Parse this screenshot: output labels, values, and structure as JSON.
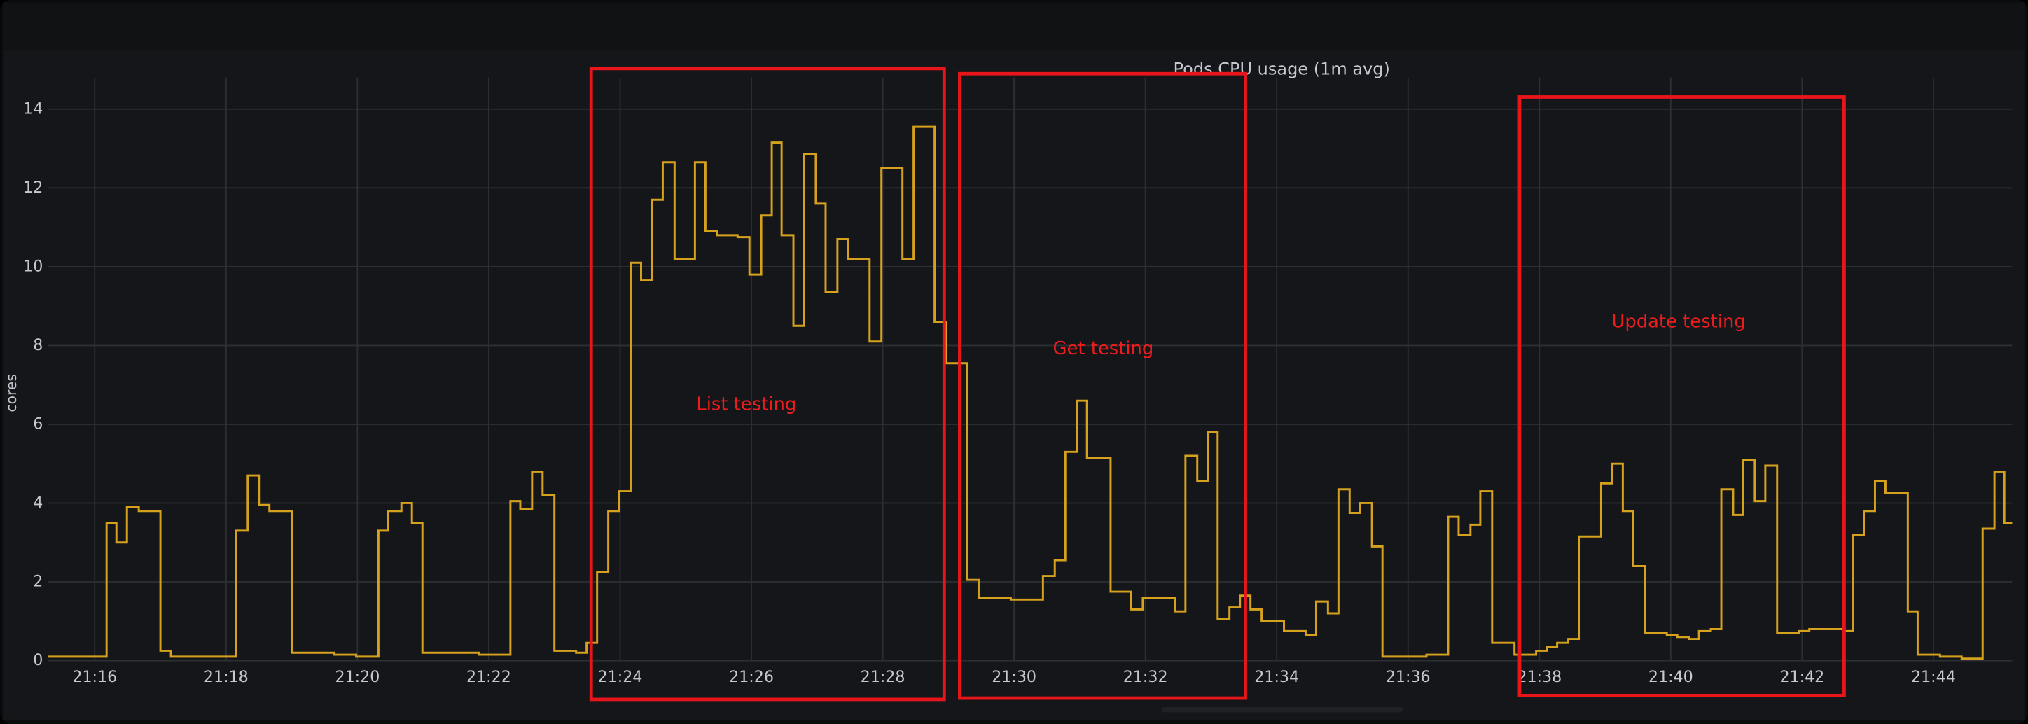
{
  "chart_data": {
    "type": "line",
    "step": "after",
    "title": "Pods CPU usage (1m avg)",
    "y_label": "cores",
    "color": "#d6a21e",
    "grid": true,
    "x": [
      1275.29,
      1276.18,
      1276.33,
      1276.49,
      1276.67,
      1277.0,
      1277.16,
      1277.42,
      1278.15,
      1278.33,
      1278.5,
      1278.66,
      1279.0,
      1279.65,
      1279.98,
      1280.32,
      1280.47,
      1280.67,
      1280.83,
      1280.99,
      1281.36,
      1281.85,
      1282.33,
      1282.48,
      1282.66,
      1282.82,
      1283.0,
      1283.33,
      1283.49,
      1283.65,
      1283.82,
      1283.98,
      1284.16,
      1284.32,
      1284.49,
      1284.65,
      1284.83,
      1285.14,
      1285.3,
      1285.48,
      1285.79,
      1285.97,
      1286.15,
      1286.31,
      1286.46,
      1286.64,
      1286.8,
      1286.98,
      1287.13,
      1287.31,
      1287.47,
      1287.8,
      1287.98,
      1288.3,
      1288.47,
      1288.79,
      1288.97,
      1289.28,
      1289.46,
      1289.95,
      1290.44,
      1290.62,
      1290.78,
      1290.96,
      1291.11,
      1291.47,
      1291.78,
      1291.96,
      1292.45,
      1292.61,
      1292.79,
      1292.95,
      1293.1,
      1293.28,
      1293.44,
      1293.6,
      1293.77,
      1294.11,
      1294.44,
      1294.6,
      1294.78,
      1294.94,
      1295.11,
      1295.27,
      1295.45,
      1295.61,
      1295.94,
      1296.28,
      1296.61,
      1296.77,
      1296.95,
      1297.1,
      1297.28,
      1297.62,
      1297.95,
      1298.11,
      1298.27,
      1298.44,
      1298.6,
      1298.94,
      1299.11,
      1299.27,
      1299.43,
      1299.61,
      1299.94,
      1300.1,
      1300.28,
      1300.43,
      1300.61,
      1300.77,
      1300.95,
      1301.1,
      1301.28,
      1301.44,
      1301.62,
      1301.95,
      1302.11,
      1302.44,
      1302.62,
      1302.78,
      1302.94,
      1303.11,
      1303.27,
      1303.61,
      1303.76,
      1304.1,
      1304.43,
      1304.75,
      1304.93,
      1305.08
    ],
    "values": [
      0.1,
      3.5,
      3.0,
      3.9,
      3.8,
      0.25,
      0.1,
      0.1,
      3.3,
      4.7,
      3.95,
      3.8,
      0.2,
      0.15,
      0.1,
      3.3,
      3.8,
      4.0,
      3.5,
      0.2,
      0.2,
      0.15,
      4.05,
      3.85,
      4.8,
      4.2,
      0.25,
      0.2,
      0.45,
      2.25,
      3.8,
      4.3,
      10.1,
      9.65,
      11.7,
      12.65,
      10.2,
      12.65,
      10.9,
      10.8,
      10.75,
      9.8,
      11.3,
      13.15,
      10.8,
      8.5,
      12.85,
      11.6,
      9.35,
      10.7,
      10.2,
      8.1,
      12.5,
      10.2,
      13.55,
      8.6,
      7.55,
      2.05,
      1.6,
      1.55,
      2.15,
      2.55,
      5.3,
      6.6,
      5.15,
      1.75,
      1.3,
      1.6,
      1.25,
      5.2,
      4.55,
      5.8,
      1.05,
      1.35,
      1.65,
      1.3,
      1.0,
      0.75,
      0.65,
      1.5,
      1.2,
      4.35,
      3.75,
      4.0,
      2.9,
      0.1,
      0.1,
      0.15,
      3.65,
      3.2,
      3.45,
      4.3,
      0.45,
      0.15,
      0.25,
      0.35,
      0.45,
      0.55,
      3.15,
      4.5,
      5.0,
      3.8,
      2.4,
      0.7,
      0.65,
      0.6,
      0.55,
      0.75,
      0.8,
      4.35,
      3.7,
      5.1,
      4.05,
      4.95,
      0.7,
      0.75,
      0.8,
      0.8,
      0.75,
      3.2,
      3.8,
      4.55,
      4.25,
      1.25,
      0.15,
      0.1,
      0.05,
      3.35,
      4.8,
      3.5
    ],
    "xlim": [
      1275.29,
      1305.2
    ],
    "xticks": [
      {
        "value": 1276,
        "label": "21:16"
      },
      {
        "value": 1278,
        "label": "21:18"
      },
      {
        "value": 1280,
        "label": "21:20"
      },
      {
        "value": 1282,
        "label": "21:22"
      },
      {
        "value": 1284,
        "label": "21:24"
      },
      {
        "value": 1286,
        "label": "21:26"
      },
      {
        "value": 1288,
        "label": "21:28"
      },
      {
        "value": 1290,
        "label": "21:30"
      },
      {
        "value": 1292,
        "label": "21:32"
      },
      {
        "value": 1294,
        "label": "21:34"
      },
      {
        "value": 1296,
        "label": "21:36"
      },
      {
        "value": 1298,
        "label": "21:38"
      },
      {
        "value": 1300,
        "label": "21:40"
      },
      {
        "value": 1302,
        "label": "21:42"
      },
      {
        "value": 1304,
        "label": "21:44"
      }
    ],
    "ylim": [
      0,
      14.8
    ],
    "yticks": [
      0,
      2,
      4,
      6,
      8,
      10,
      12,
      14
    ],
    "annotations": [
      "List testing",
      "Get testing",
      "Update testing"
    ]
  }
}
